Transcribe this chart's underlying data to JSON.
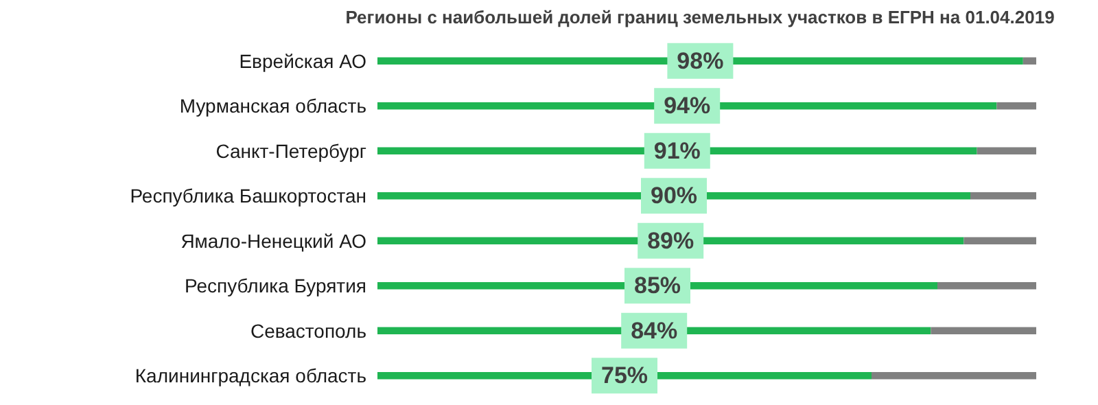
{
  "chart_data": {
    "type": "bar",
    "orientation": "horizontal",
    "stacked": true,
    "title": "Регионы с наибольшей долей границ земельных участков в ЕГРН на 01.04.2019",
    "categories": [
      "Еврейская АО",
      "Мурманская область",
      "Санкт-Петербург",
      "Республика Башкортостан",
      "Ямало-Ненецкий АО",
      "Республика Бурятия",
      "Севастополь",
      "Калининградская область"
    ],
    "series": [
      {
        "color": "#1fb552",
        "values": [
          98,
          94,
          91,
          90,
          89,
          85,
          84,
          75
        ],
        "value_labels": [
          "98%",
          "94%",
          "91%",
          "90%",
          "89%",
          "85%",
          "84%",
          "75%"
        ]
      },
      {
        "color": "#808080",
        "values": [
          2,
          6,
          9,
          10,
          11,
          15,
          16,
          25
        ]
      }
    ],
    "grid": false,
    "legend": false
  }
}
